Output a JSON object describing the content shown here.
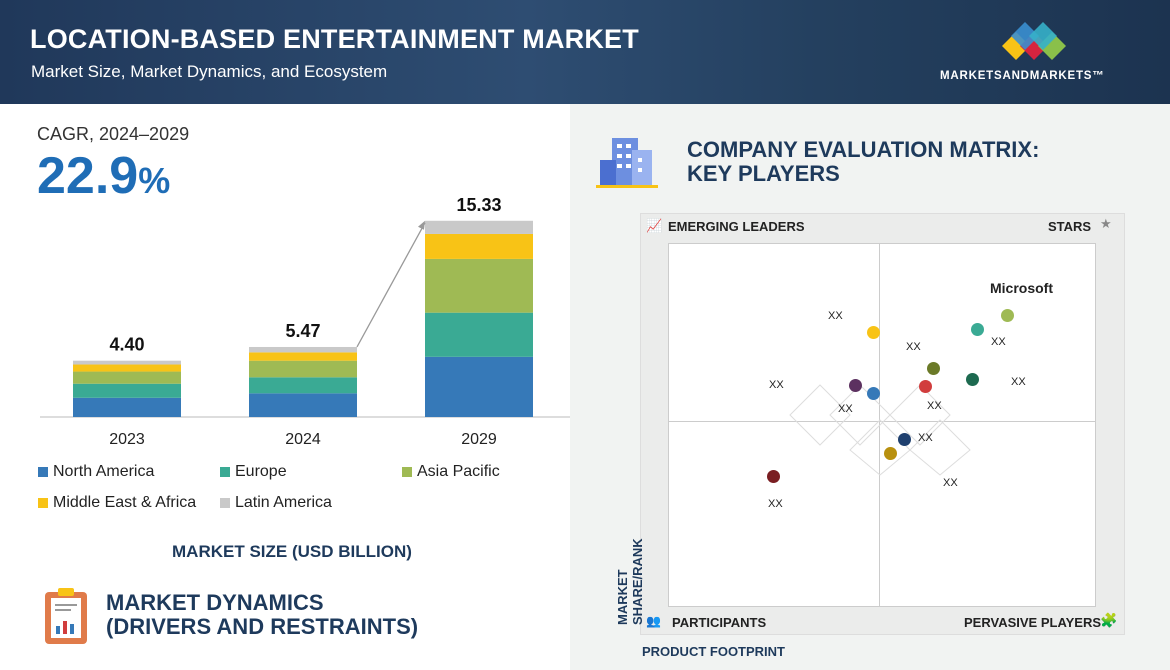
{
  "header": {
    "title": "LOCATION-BASED ENTERTAINMENT MARKET",
    "subtitle": "Market Size, Market Dynamics, and Ecosystem",
    "logo_text": "MARKETSANDMARKETS™"
  },
  "cagr": {
    "label": "CAGR, 2024–2029",
    "value": "22.9",
    "unit": "%"
  },
  "chart_data": {
    "type": "bar",
    "stacked": true,
    "categories": [
      "2023",
      "2024",
      "2029"
    ],
    "totals": [
      "4.40",
      "5.47",
      "15.33"
    ],
    "series": [
      {
        "name": "North America",
        "color": "#3679b8",
        "values": [
          1.5,
          1.85,
          4.7
        ]
      },
      {
        "name": "Europe",
        "color": "#3aaa94",
        "values": [
          1.1,
          1.25,
          3.45
        ]
      },
      {
        "name": "Asia Pacific",
        "color": "#9fba54",
        "values": [
          0.95,
          1.3,
          4.2
        ]
      },
      {
        "name": "Middle East & Africa",
        "color": "#f8c316",
        "values": [
          0.55,
          0.65,
          1.95
        ]
      },
      {
        "name": "Latin America",
        "color": "#c9c9c9",
        "values": [
          0.3,
          0.42,
          1.03
        ]
      }
    ],
    "xlabel": "MARKET SIZE (USD BILLION)",
    "legend": "bottom"
  },
  "dynamics": {
    "title_line1": "MARKET DYNAMICS",
    "title_line2": "(DRIVERS AND RESTRAINTS)"
  },
  "matrix": {
    "title_line1": "COMPANY EVALUATION MATRIX:",
    "title_line2": "KEY PLAYERS",
    "quadrants": {
      "tl": "EMERGING LEADERS",
      "tr": "STARS",
      "bl": "PARTICIPANTS",
      "br": "PERVASIVE PLAYERS"
    },
    "y_axis": "MARKET SHARE/RANK",
    "x_axis": "PRODUCT FOOTPRINT",
    "companies": [
      {
        "label": "Microsoft",
        "color": "#9fba54"
      },
      {
        "label": "XX",
        "color": "#3aaa94"
      },
      {
        "label": "XX",
        "color": "#f8c316"
      },
      {
        "label": "XX",
        "color": "#5c3160"
      },
      {
        "label": "XX",
        "color": "#3679b8"
      },
      {
        "label": "XX",
        "color": "#6b7a28"
      },
      {
        "label": "XX",
        "color": "#d13d3d"
      },
      {
        "label": "XX",
        "color": "#1d6a50"
      },
      {
        "label": "XX",
        "color": "#1e3f6e"
      },
      {
        "label": "XX",
        "color": "#b8900f"
      },
      {
        "label": "XX",
        "color": "#7a1e22"
      }
    ]
  }
}
